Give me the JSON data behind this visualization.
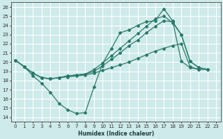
{
  "xlabel": "Humidex (Indice chaleur)",
  "xlim": [
    -0.5,
    23.5
  ],
  "ylim": [
    13.5,
    26.5
  ],
  "yticks": [
    14,
    15,
    16,
    17,
    18,
    19,
    20,
    21,
    22,
    23,
    24,
    25,
    26
  ],
  "xticks": [
    0,
    1,
    2,
    3,
    4,
    5,
    6,
    7,
    8,
    9,
    10,
    11,
    12,
    13,
    14,
    15,
    16,
    17,
    18,
    19,
    20,
    21,
    22,
    23
  ],
  "bg_color": "#ceeaea",
  "grid_color": "#ffffff",
  "line_color": "#2a7a6a",
  "series1_x": [
    0,
    1,
    2,
    3,
    4,
    5,
    6,
    7,
    8,
    9,
    10,
    11,
    12,
    13,
    14,
    15,
    16,
    17,
    18,
    19,
    20,
    21
  ],
  "series1_y": [
    20.2,
    19.5,
    18.5,
    17.7,
    16.7,
    15.5,
    14.8,
    14.4,
    14.5,
    17.3,
    19.9,
    21.5,
    23.2,
    23.5,
    24.0,
    24.4,
    24.5,
    25.8,
    24.5,
    20.1,
    19.4,
    19.2
  ],
  "series2_x": [
    0,
    1,
    2,
    3,
    4,
    5,
    6,
    7,
    8,
    9,
    10,
    11,
    12,
    13,
    14,
    15,
    16,
    17,
    18,
    19,
    20,
    21,
    22
  ],
  "series2_y": [
    20.2,
    19.5,
    18.8,
    18.3,
    18.2,
    18.3,
    18.4,
    18.5,
    18.6,
    18.8,
    19.1,
    19.4,
    19.7,
    20.0,
    20.4,
    20.8,
    21.2,
    21.5,
    21.8,
    22.0,
    19.5,
    19.2,
    19.2
  ],
  "series3_x": [
    0,
    1,
    2,
    3,
    4,
    5,
    6,
    7,
    8,
    9,
    10,
    11,
    12,
    13,
    14,
    15,
    16,
    17,
    18,
    19,
    20,
    21,
    22
  ],
  "series3_y": [
    20.2,
    19.5,
    18.8,
    18.3,
    18.2,
    18.3,
    18.5,
    18.6,
    18.7,
    19.0,
    19.6,
    20.3,
    21.0,
    21.8,
    22.4,
    23.2,
    23.9,
    24.5,
    24.4,
    23.0,
    20.1,
    19.4,
    19.2
  ],
  "series4_x": [
    0,
    1,
    2,
    3,
    4,
    5,
    6,
    7,
    8,
    9,
    10,
    11,
    12,
    13,
    14,
    15,
    16,
    17,
    18,
    19,
    20,
    21,
    22
  ],
  "series4_y": [
    20.2,
    19.5,
    18.8,
    18.3,
    18.2,
    18.3,
    18.5,
    18.6,
    18.7,
    19.2,
    19.9,
    20.7,
    21.5,
    22.3,
    23.1,
    23.9,
    24.7,
    25.0,
    24.3,
    23.0,
    20.1,
    19.4,
    19.2
  ]
}
